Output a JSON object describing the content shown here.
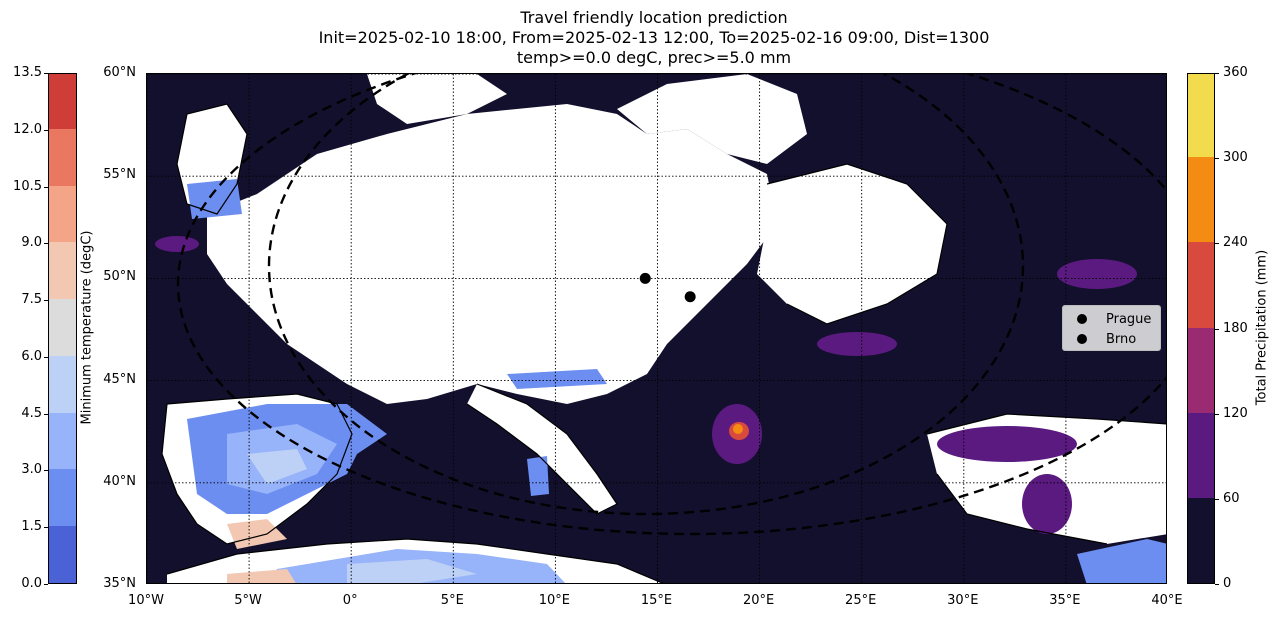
{
  "title": {
    "line1": "Travel friendly location prediction",
    "line2": "Init=2025-02-10 18:00, From=2025-02-13 12:00, To=2025-02-16 09:00, Dist=1300",
    "line3": "temp>=0.0 degC, prec>=5.0 mm"
  },
  "left_colorbar": {
    "label": "Minimum temperature (degC)",
    "ticks": [
      "0.0",
      "1.5",
      "3.0",
      "4.5",
      "6.0",
      "7.5",
      "9.0",
      "10.5",
      "12.0",
      "13.5"
    ],
    "colors": [
      "#4a62d6",
      "#6c8ef0",
      "#97b3fa",
      "#bdd0f6",
      "#dcdcdc",
      "#f2c8b3",
      "#f5a587",
      "#ea7860",
      "#cf3d38"
    ]
  },
  "right_colorbar": {
    "label": "Total Precipitation (mm)",
    "ticks": [
      "0",
      "60",
      "120",
      "180",
      "240",
      "300",
      "360"
    ],
    "colors": [
      "#13102d",
      "#5b1a80",
      "#9a2a72",
      "#d84a3e",
      "#f48b12",
      "#f2db4c"
    ]
  },
  "map": {
    "lon_labels": [
      "10°W",
      "5°W",
      "0°",
      "5°E",
      "10°E",
      "15°E",
      "20°E",
      "25°E",
      "30°E",
      "35°E",
      "40°E"
    ],
    "lat_labels": [
      "60°N",
      "55°N",
      "50°N",
      "45°N",
      "40°N",
      "35°N"
    ],
    "lon_range": [
      -10,
      40
    ],
    "lat_range": [
      35,
      60
    ],
    "gridlines": true,
    "colors": {
      "land_ok": "#ffffff",
      "dry": "#13102d",
      "coast": "#000000"
    }
  },
  "points": [
    {
      "name": "Prague",
      "lon": 14.4,
      "lat": 50.0
    },
    {
      "name": "Brno",
      "lon": 16.6,
      "lat": 49.1
    }
  ],
  "legend": {
    "placement": "center-right",
    "items": [
      "Prague",
      "Brno"
    ]
  }
}
